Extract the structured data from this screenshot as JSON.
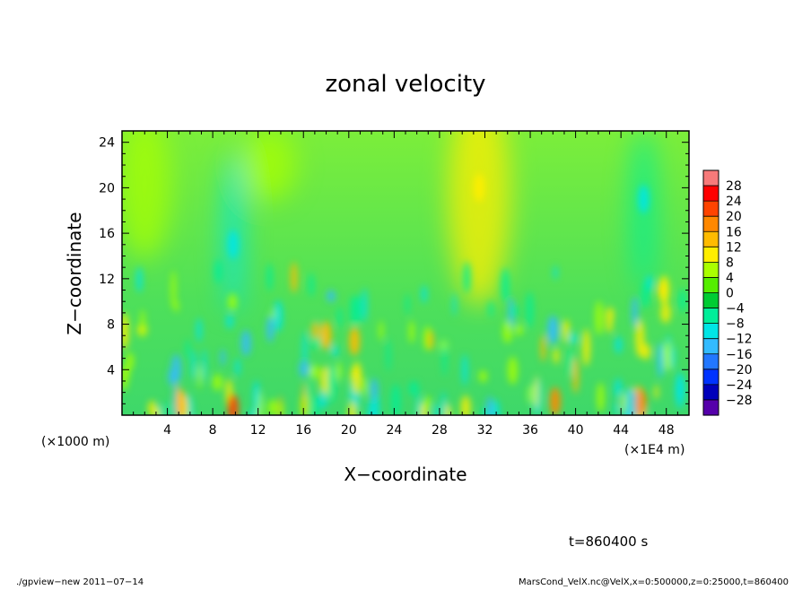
{
  "chart_data": {
    "type": "heatmap",
    "title": "zonal velocity",
    "xlabel": "X−coordinate",
    "ylabel": "Z−coordinate",
    "x_unit_left": "(×1000 m)",
    "x_unit_right": "(×1E4 m)",
    "xlim": [
      0,
      50
    ],
    "ylim": [
      0,
      25
    ],
    "x_ticks": [
      4,
      8,
      12,
      16,
      20,
      24,
      28,
      32,
      36,
      40,
      44,
      48
    ],
    "x_tick_labels": [
      "4",
      "8",
      "12",
      "16",
      "20",
      "24",
      "28",
      "32",
      "36",
      "40",
      "44",
      "48"
    ],
    "y_ticks": [
      4,
      8,
      12,
      16,
      20,
      24
    ],
    "y_tick_labels": [
      "4",
      "8",
      "12",
      "16",
      "20",
      "24"
    ],
    "colorbar": {
      "levels": [
        28,
        24,
        20,
        16,
        12,
        8,
        4,
        0,
        -4,
        -8,
        -12,
        -16,
        -20,
        -24,
        -28
      ],
      "labels": [
        "28",
        "24",
        "20",
        "16",
        "12",
        "8",
        "4",
        "0",
        "−4",
        "−8",
        "−12",
        "−16",
        "−20",
        "−24",
        "−28"
      ],
      "colors": [
        "#f77a7a",
        "#ff0000",
        "#ff4400",
        "#ff8800",
        "#ffbb00",
        "#ffee00",
        "#aaff00",
        "#55ee00",
        "#00cc33",
        "#00ee99",
        "#00e5e5",
        "#33bbff",
        "#2277ff",
        "#0033ff",
        "#0000bb",
        "#5500aa"
      ]
    },
    "field_features": [
      {
        "x": 9.8,
        "z": 0.6,
        "v": 22
      },
      {
        "x": 5.2,
        "z": 1.0,
        "v": 14
      },
      {
        "x": 45.8,
        "z": 1.0,
        "v": 16
      },
      {
        "x": 38.2,
        "z": 1.2,
        "v": 18
      },
      {
        "x": 31.5,
        "z": 20.0,
        "v": 8
      },
      {
        "x": 9.8,
        "z": 15.0,
        "v": -12
      },
      {
        "x": 46.0,
        "z": 19.0,
        "v": -10
      },
      {
        "x": 38.0,
        "z": 7.5,
        "v": -14
      },
      {
        "x": 18.0,
        "z": 7.0,
        "v": 14
      },
      {
        "x": 20.5,
        "z": 6.5,
        "v": 14
      },
      {
        "x": 47.8,
        "z": 11.0,
        "v": 10
      }
    ]
  },
  "annotations": {
    "time": "t=860400 s",
    "footer_left": "./gpview−new   2011−07−14",
    "footer_right": "MarsCond_VelX.nc@VelX,x=0:500000,z=0:25000,t=860400"
  }
}
